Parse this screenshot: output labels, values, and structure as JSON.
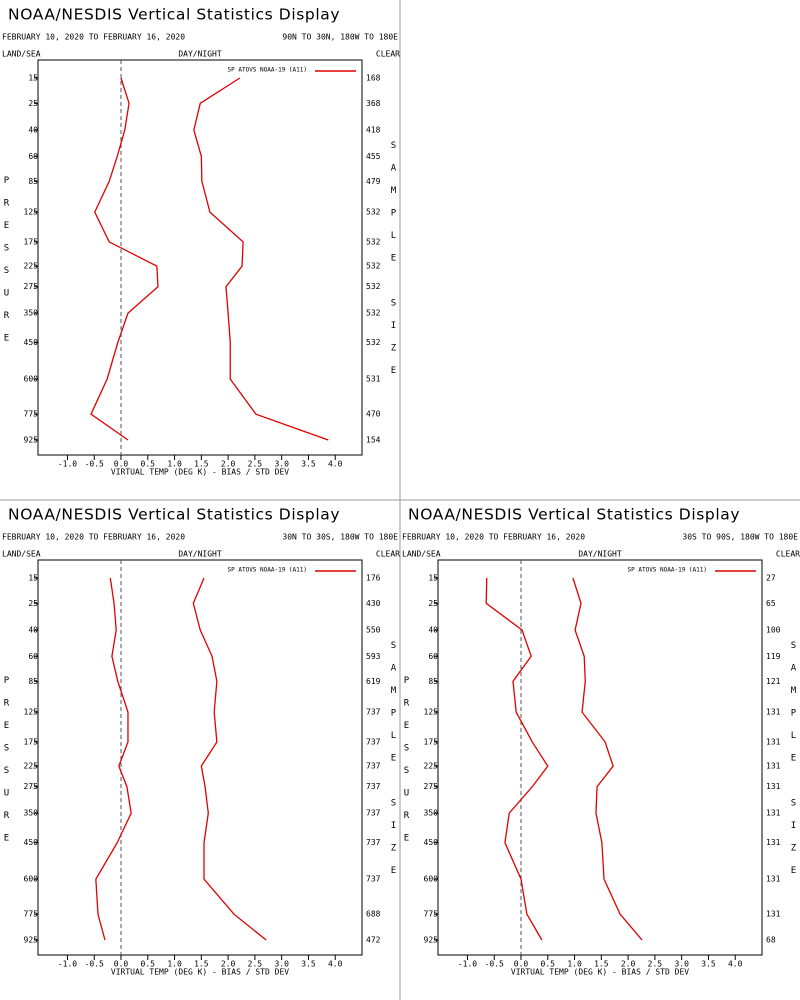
{
  "chart_data": [
    {
      "type": "line",
      "title": "NOAA/NESDIS Vertical Statistics Display",
      "date_range": "FEBRUARY 10, 2020 TO FEBRUARY 16, 2020",
      "region": "90N TO 30N, 180W TO 180E",
      "land_sea": "LAND/SEA",
      "day_night": "DAY/NIGHT",
      "clear": "CLEAR",
      "legend": "SP ATOVS NOAA-19 (A11)",
      "x_label": "VIRTUAL TEMP (DEG K) - BIAS / STD DEV",
      "y_label": "PRESSURE",
      "y2_label": "SAMPLE SIZE",
      "y": [
        15,
        25,
        40,
        60,
        85,
        125,
        175,
        225,
        275,
        350,
        450,
        600,
        775,
        925
      ],
      "sample_sizes": [
        168,
        368,
        418,
        455,
        479,
        532,
        532,
        532,
        532,
        532,
        532,
        531,
        470,
        154
      ],
      "xlim": [
        -1.55,
        4.5
      ],
      "xticks": [
        {
          "value": -1,
          "label": "-1.0"
        },
        -0.5,
        {
          "value": 0,
          "label": "0.0"
        },
        0.5,
        {
          "value": 1,
          "label": "1.0"
        },
        1.5,
        {
          "value": 2,
          "label": "2.0"
        },
        2.5,
        {
          "value": 3,
          "label": "3.0"
        },
        3.5,
        {
          "value": 4,
          "label": "4.0"
        }
      ],
      "series": [
        {
          "color": "#e00000",
          "values": [
            0.0,
            0.15,
            0.07,
            -0.07,
            -0.22,
            -0.49,
            -0.22,
            0.67,
            0.69,
            0.13,
            -0.06,
            -0.26,
            -0.56,
            0.13
          ]
        },
        {
          "color": "#e00000",
          "values": [
            2.22,
            1.48,
            1.36,
            1.5,
            1.51,
            1.66,
            2.28,
            2.26,
            1.96,
            2.0,
            2.04,
            2.04,
            2.52,
            3.87
          ]
        }
      ]
    },
    {
      "type": "line",
      "title": "NOAA/NESDIS Vertical Statistics Display",
      "date_range": "FEBRUARY 10, 2020 TO FEBRUARY 16, 2020",
      "region": "30N TO 30S, 180W TO 180E",
      "land_sea": "LAND/SEA",
      "day_night": "DAY/NIGHT",
      "clear": "CLEAR",
      "legend": "SP ATOVS NOAA-19 (A11)",
      "x_label": "VIRTUAL TEMP (DEG K) - BIAS / STD DEV",
      "y_label": "PRESSURE",
      "y2_label": "SAMPLE SIZE",
      "y": [
        15,
        25,
        40,
        60,
        85,
        125,
        175,
        225,
        275,
        350,
        450,
        600,
        775,
        925
      ],
      "sample_sizes": [
        176,
        430,
        550,
        593,
        619,
        737,
        737,
        737,
        737,
        737,
        737,
        737,
        688,
        472
      ],
      "xlim": [
        -1.55,
        4.5
      ],
      "xticks": [
        {
          "value": -1,
          "label": "-1.0"
        },
        -0.5,
        {
          "value": 0,
          "label": "0.0"
        },
        0.5,
        {
          "value": 1,
          "label": "1.0"
        },
        1.5,
        {
          "value": 2,
          "label": "2.0"
        },
        2.5,
        {
          "value": 3,
          "label": "3.0"
        },
        3.5,
        {
          "value": 4,
          "label": "4.0"
        }
      ],
      "series": [
        {
          "color": "#e00000",
          "values": [
            -0.2,
            -0.13,
            -0.09,
            -0.17,
            -0.06,
            0.13,
            0.13,
            -0.04,
            0.11,
            0.19,
            -0.07,
            -0.47,
            -0.43,
            -0.3
          ]
        },
        {
          "color": "#e00000",
          "values": [
            1.55,
            1.35,
            1.48,
            1.7,
            1.79,
            1.74,
            1.79,
            1.5,
            1.57,
            1.63,
            1.55,
            1.55,
            2.11,
            2.71
          ]
        }
      ]
    },
    {
      "type": "line",
      "title": "NOAA/NESDIS Vertical Statistics Display",
      "date_range": "FEBRUARY 10, 2020 TO FEBRUARY 16, 2020",
      "region": "30S TO 90S, 180W TO 180E",
      "land_sea": "LAND/SEA",
      "day_night": "DAY/NIGHT",
      "clear": "CLEAR",
      "legend": "SP ATOVS NOAA-19 (A11)",
      "x_label": "VIRTUAL TEMP (DEG K) - BIAS / STD DEV",
      "y_label": "PRESSURE",
      "y2_label": "SAMPLE SIZE",
      "y": [
        15,
        25,
        40,
        60,
        85,
        125,
        175,
        225,
        275,
        350,
        450,
        600,
        775,
        925
      ],
      "sample_sizes": [
        27,
        65,
        100,
        119,
        121,
        131,
        131,
        131,
        131,
        131,
        131,
        131,
        131,
        68
      ],
      "xlim": [
        -1.55,
        4.5
      ],
      "xticks": [
        {
          "value": -1,
          "label": "-1.0"
        },
        -0.5,
        {
          "value": 0,
          "label": "0.0"
        },
        0.5,
        {
          "value": 1,
          "label": "1.0"
        },
        1.5,
        {
          "value": 2,
          "label": "2.0"
        },
        2.5,
        {
          "value": 3,
          "label": "3.0"
        },
        3.5,
        {
          "value": 4,
          "label": "4.0"
        }
      ],
      "series": [
        {
          "color": "#e00000",
          "values": [
            -0.64,
            -0.65,
            0.02,
            0.19,
            -0.15,
            -0.09,
            0.21,
            0.5,
            0.21,
            -0.22,
            -0.3,
            0.0,
            0.11,
            0.39
          ]
        },
        {
          "color": "#e00000",
          "values": [
            0.97,
            1.12,
            1.01,
            1.18,
            1.2,
            1.14,
            1.57,
            1.72,
            1.42,
            1.4,
            1.51,
            1.55,
            1.85,
            2.26
          ]
        }
      ]
    }
  ]
}
